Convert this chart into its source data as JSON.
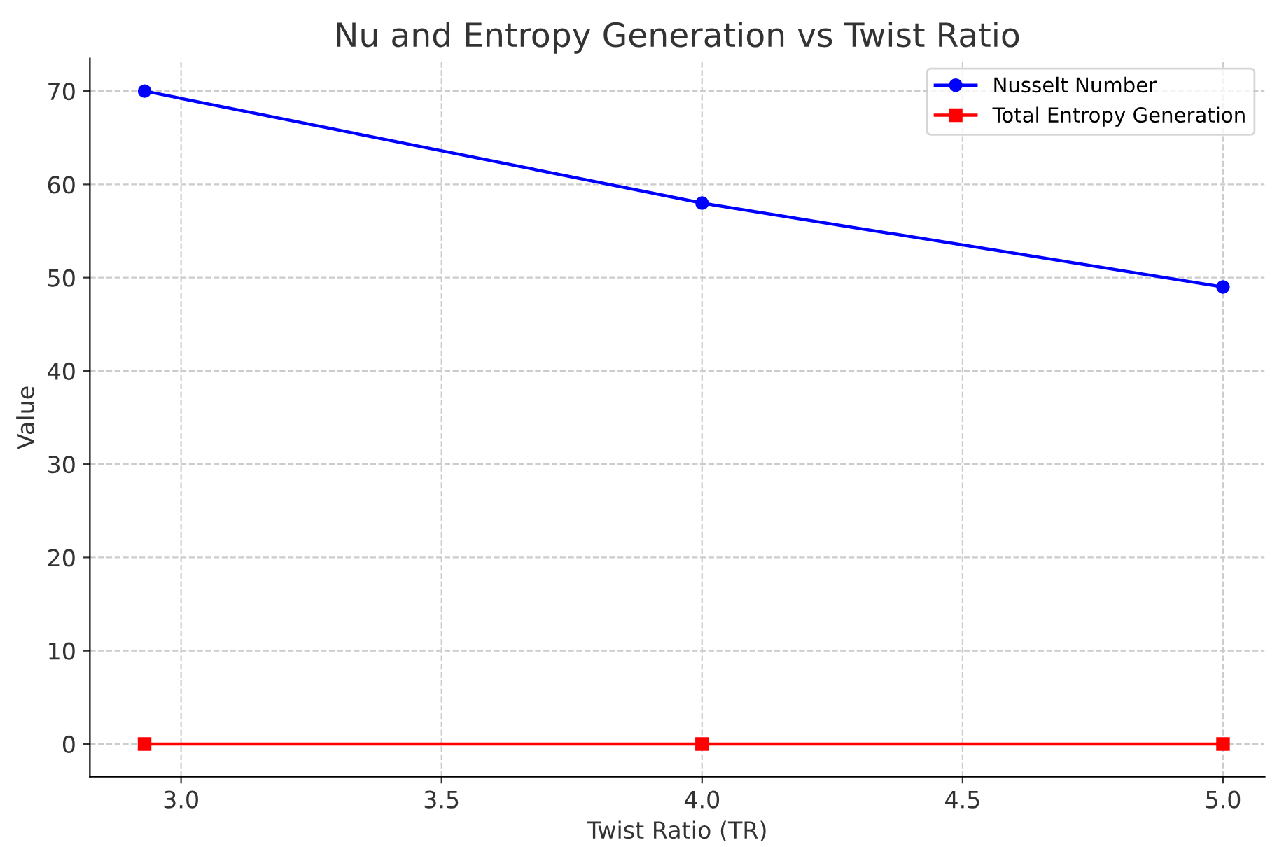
{
  "chart_data": {
    "type": "line",
    "title": "Nu and Entropy Generation vs Twist Ratio",
    "xlabel": "Twist Ratio (TR)",
    "ylabel": "Value",
    "x": [
      2.93,
      4.0,
      5.0
    ],
    "series": [
      {
        "name": "Nusselt Number",
        "color": "#0000ff",
        "values": [
          70,
          58,
          49
        ],
        "marker": "circle"
      },
      {
        "name": "Total Entropy Generation",
        "color": "#ff0000",
        "values": [
          0,
          0,
          0
        ],
        "marker": "square"
      }
    ],
    "xlim": [
      2.825,
      5.08
    ],
    "ylim": [
      -3.5,
      73.5
    ],
    "xticks": [
      {
        "value": 3.0,
        "label": "3.0"
      },
      {
        "value": 3.5,
        "label": "3.5"
      },
      {
        "value": 4.0,
        "label": "4.0"
      },
      {
        "value": 4.5,
        "label": "4.5"
      },
      {
        "value": 5.0,
        "label": "5.0"
      }
    ],
    "yticks": [
      0,
      10,
      20,
      30,
      40,
      50,
      60,
      70
    ],
    "grid": true,
    "legend": "top right",
    "line_style": "solid"
  }
}
